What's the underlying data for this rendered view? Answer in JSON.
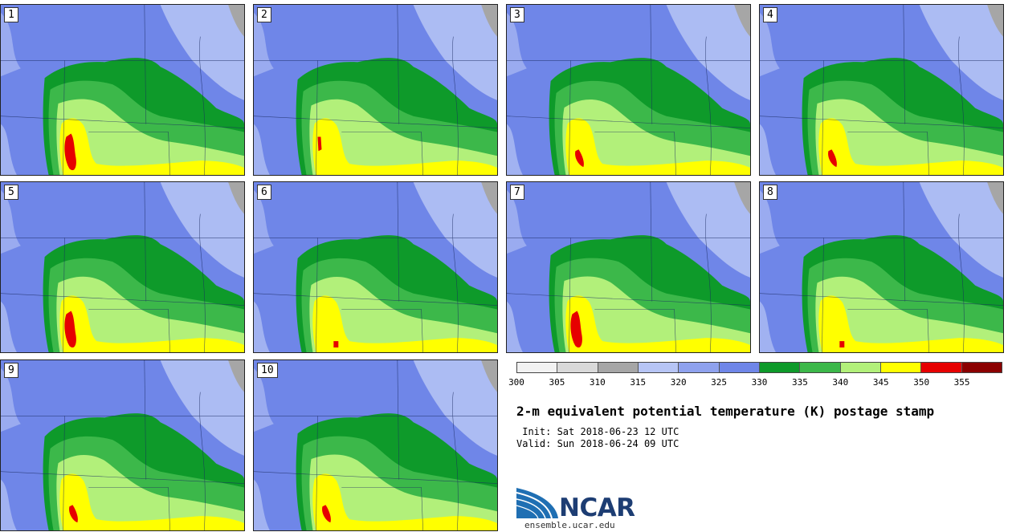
{
  "panels": [
    {
      "label": "1",
      "red_blob": "big"
    },
    {
      "label": "2",
      "red_blob": "thin"
    },
    {
      "label": "3",
      "red_blob": "small"
    },
    {
      "label": "4",
      "red_blob": "small"
    },
    {
      "label": "5",
      "red_blob": "big"
    },
    {
      "label": "6",
      "red_blob": "dot"
    },
    {
      "label": "7",
      "red_blob": "big"
    },
    {
      "label": "8",
      "red_blob": "dot"
    },
    {
      "label": "9",
      "red_blob": "small"
    },
    {
      "label": "10",
      "red_blob": "small"
    }
  ],
  "colorbar": {
    "ticks": [
      "300",
      "305",
      "310",
      "315",
      "320",
      "325",
      "330",
      "335",
      "340",
      "345",
      "350",
      "355"
    ],
    "colors": [
      "#f2f2f2",
      "#d9d9d9",
      "#a6a6a6",
      "#b7c5f5",
      "#8fa2ee",
      "#6f86e8",
      "#0e9a2a",
      "#3cb84a",
      "#b2f07a",
      "#ffff00",
      "#e60000",
      "#8b0000"
    ]
  },
  "title": "2-m equivalent potential temperature (K) postage stamp",
  "init_line": " Init: Sat 2018-06-23 12 UTC",
  "valid_line": "Valid: Sun 2018-06-24 09 UTC",
  "logo": {
    "text": "NCAR",
    "url": "ensemble.ucar.edu"
  }
}
